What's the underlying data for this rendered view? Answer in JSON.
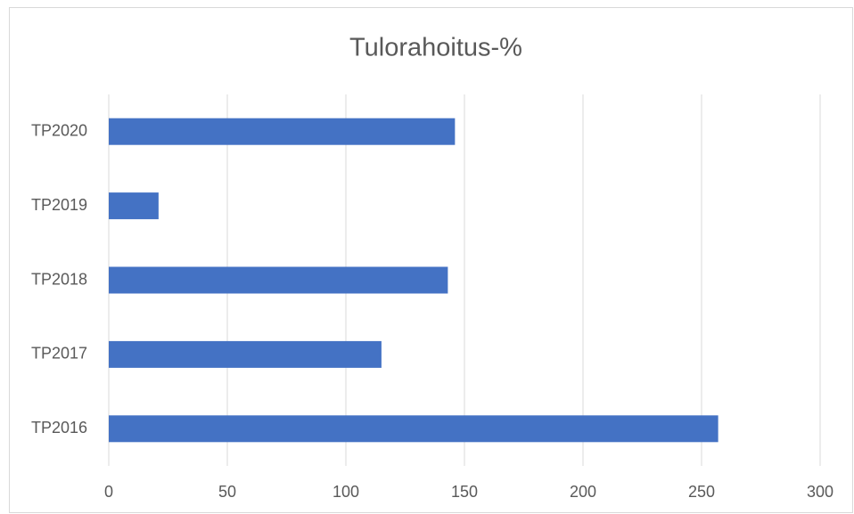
{
  "chart_data": {
    "type": "bar",
    "orientation": "horizontal",
    "title": "Tulorahoitus-%",
    "categories": [
      "TP2016",
      "TP2017",
      "TP2018",
      "TP2019",
      "TP2020"
    ],
    "values": [
      257,
      115,
      143,
      21,
      146
    ],
    "color": "#4472c4",
    "xlim": [
      0,
      300
    ],
    "xticks": [
      0,
      50,
      100,
      150,
      200,
      250,
      300
    ],
    "grid": true
  }
}
